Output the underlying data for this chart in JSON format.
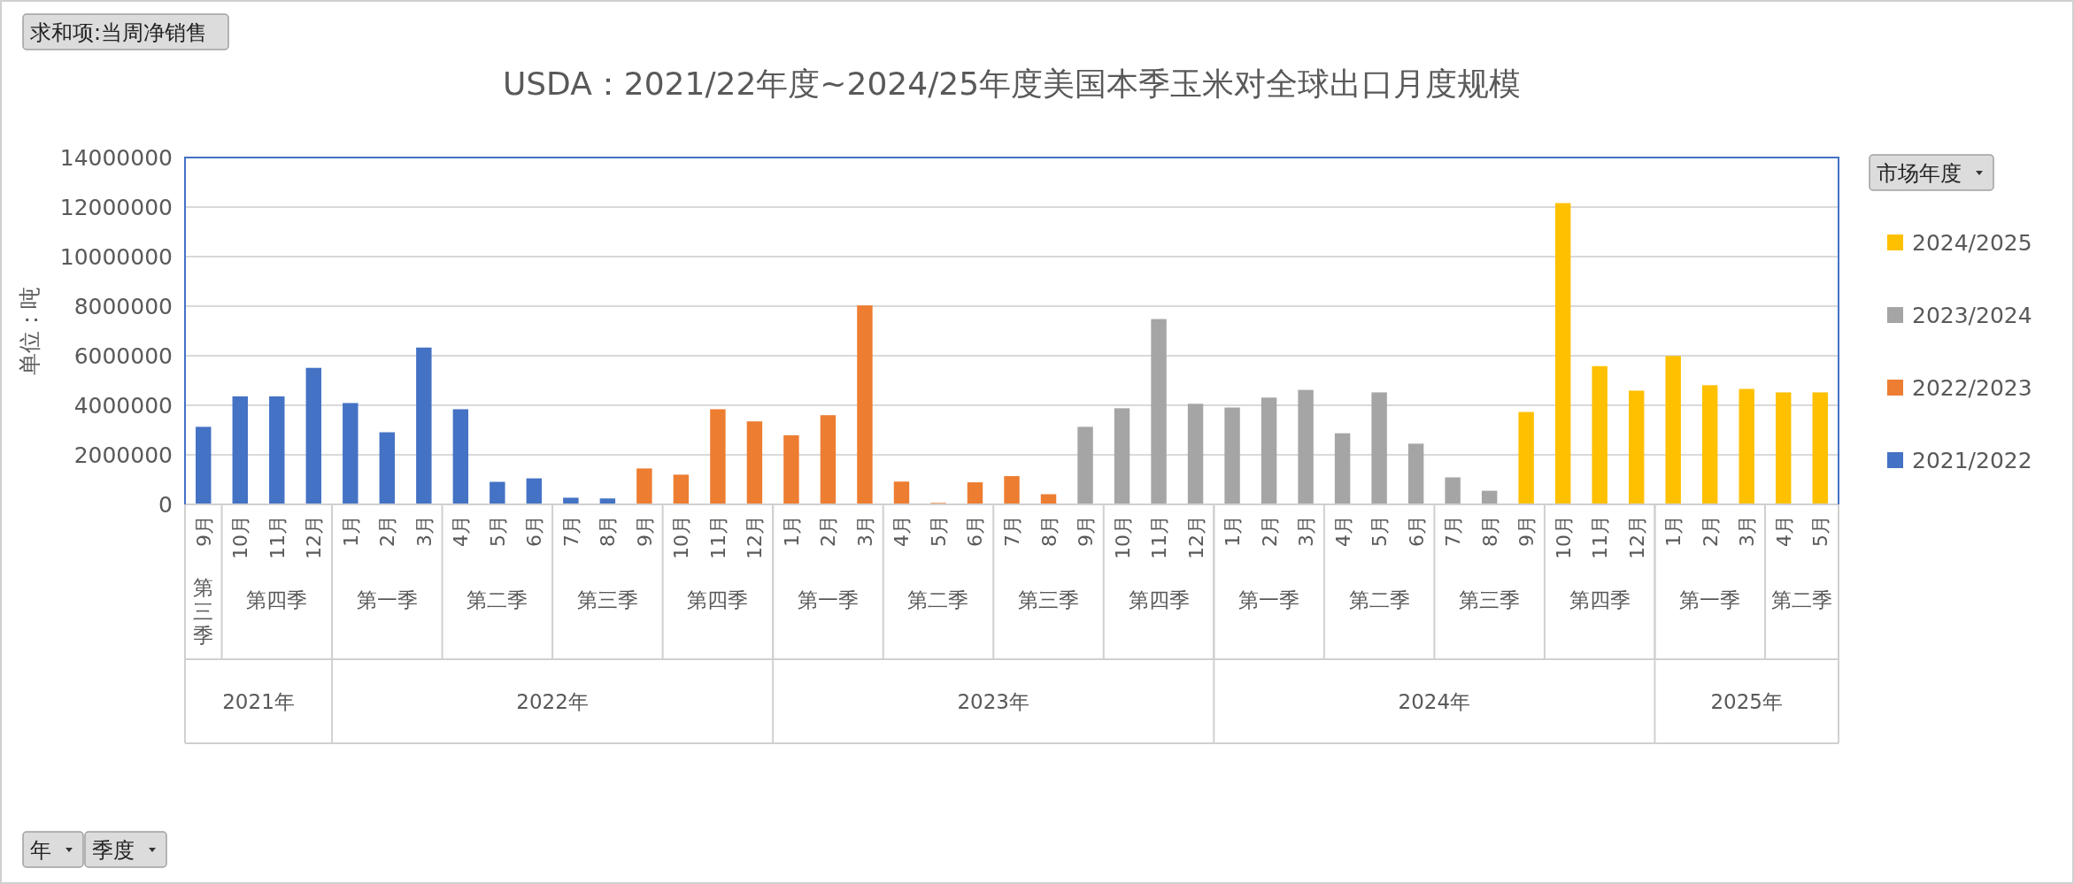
{
  "chart_data": {
    "type": "bar",
    "title": "USDA：2021/22年度~2024/25年度美国本季玉米对全球出口月度规模",
    "ylabel": "单位：吨",
    "legend_title": "市场年度",
    "legend": "right",
    "grid": "y",
    "categories": [
      "9月",
      "10月",
      "11月",
      "12月",
      "1月",
      "2月",
      "3月",
      "4月",
      "5月",
      "6月",
      "7月",
      "8月",
      "9月",
      "10月",
      "11月",
      "12月",
      "1月",
      "2月",
      "3月",
      "4月",
      "5月",
      "6月",
      "7月",
      "8月",
      "9月",
      "10月",
      "11月",
      "12月",
      "1月",
      "2月",
      "3月",
      "4月",
      "5月",
      "6月",
      "7月",
      "8月",
      "9月",
      "10月",
      "11月",
      "12月",
      "1月",
      "2月",
      "3月",
      "4月",
      "5月"
    ],
    "ylim": [
      0,
      14000000
    ],
    "yticks": [
      0,
      2000000,
      4000000,
      6000000,
      8000000,
      10000000,
      12000000,
      14000000
    ],
    "series": [
      {
        "name": "2021/2022",
        "color": "#4472c4",
        "values": [
          3130000,
          4360000,
          4360000,
          5510000,
          4090000,
          2910000,
          6330000,
          3840000,
          910000,
          1050000,
          270000,
          240000,
          null,
          null,
          null,
          null,
          null,
          null,
          null,
          null,
          null,
          null,
          null,
          null,
          null,
          null,
          null,
          null,
          null,
          null,
          null,
          null,
          null,
          null,
          null,
          null,
          null,
          null,
          null,
          null,
          null,
          null,
          null,
          null,
          null
        ]
      },
      {
        "name": "2022/2023",
        "color": "#ed7d31",
        "values": [
          null,
          null,
          null,
          null,
          null,
          null,
          null,
          null,
          null,
          null,
          null,
          null,
          1450000,
          1200000,
          3840000,
          3350000,
          2790000,
          3600000,
          8030000,
          920000,
          60000,
          890000,
          1140000,
          410000,
          null,
          null,
          null,
          null,
          null,
          null,
          null,
          null,
          null,
          null,
          null,
          null,
          null,
          null,
          null,
          null,
          null,
          null,
          null,
          null,
          null
        ]
      },
      {
        "name": "2023/2024",
        "color": "#a5a5a5",
        "values": [
          null,
          null,
          null,
          null,
          null,
          null,
          null,
          null,
          null,
          null,
          null,
          null,
          null,
          null,
          null,
          null,
          null,
          null,
          null,
          null,
          null,
          null,
          null,
          null,
          3130000,
          3880000,
          7480000,
          4060000,
          3910000,
          4310000,
          4620000,
          2870000,
          4520000,
          2450000,
          1090000,
          550000,
          null,
          null,
          null,
          null,
          null,
          null,
          null,
          null,
          null
        ]
      },
      {
        "name": "2024/2025",
        "color": "#ffc000",
        "values": [
          null,
          null,
          null,
          null,
          null,
          null,
          null,
          null,
          null,
          null,
          null,
          null,
          null,
          null,
          null,
          null,
          null,
          null,
          null,
          null,
          null,
          null,
          null,
          null,
          null,
          null,
          null,
          null,
          null,
          null,
          null,
          null,
          null,
          null,
          null,
          null,
          3730000,
          12160000,
          5580000,
          4590000,
          5990000,
          4810000,
          4660000,
          4520000,
          4520000
        ]
      }
    ],
    "annotations": [
      "求和项:当周净销售",
      "年",
      "季度",
      "第三季",
      "第四季",
      "第一季",
      "第二季",
      "第三季",
      "第四季",
      "第一季",
      "第二季",
      "第三季",
      "第四季",
      "第一季",
      "第二季",
      "第三季",
      "第四季",
      "第一季",
      "第二季",
      "2021年",
      "2022年",
      "2023年",
      "2024年",
      "2025年"
    ]
  }
}
